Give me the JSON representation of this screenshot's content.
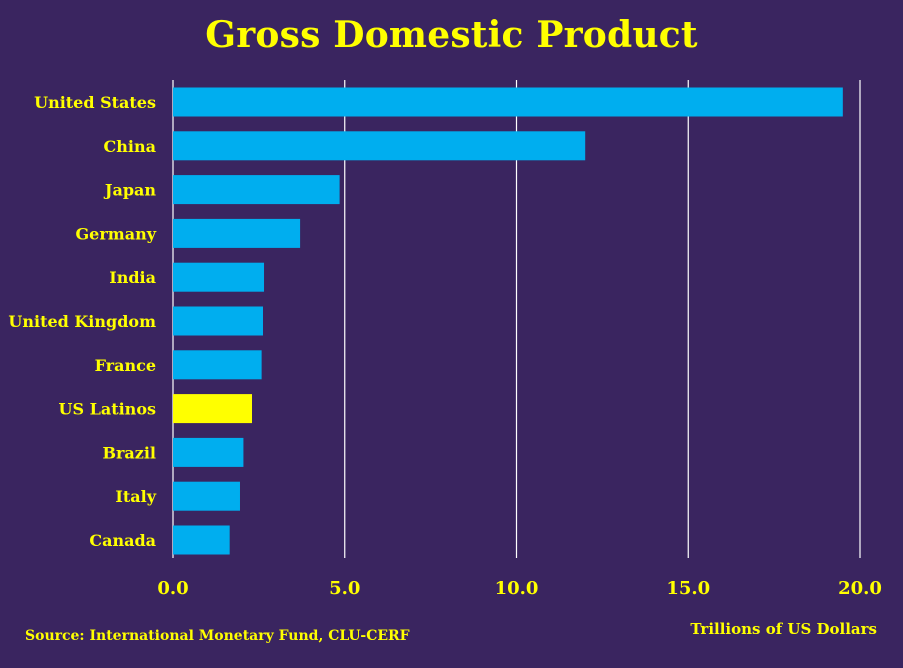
{
  "colors": {
    "background": "#3a2560",
    "text": "#ffff00",
    "bar": "#00aeef",
    "highlight_bar": "#ffff00",
    "gridline": "#ffffff"
  },
  "footer": {
    "source": "Source: International Monetary Fund, CLU-CERF"
  },
  "chart_data": {
    "type": "bar",
    "orientation": "horizontal",
    "title": "Gross Domestic Product",
    "xlabel": "Trillions of US Dollars",
    "ylabel": "",
    "xlim": [
      0,
      20
    ],
    "xticks": [
      "0.0",
      "5.0",
      "10.0",
      "15.0",
      "20.0"
    ],
    "xtick_values": [
      0,
      5,
      10,
      15,
      20
    ],
    "grid": true,
    "legend": "none",
    "categories": [
      "United States",
      "China",
      "Japan",
      "Germany",
      "India",
      "United Kingdom",
      "France",
      "US Latinos",
      "Brazil",
      "Italy",
      "Canada"
    ],
    "values": [
      19.5,
      12.0,
      4.85,
      3.7,
      2.65,
      2.62,
      2.58,
      2.3,
      2.05,
      1.95,
      1.65
    ],
    "highlight": [
      "US Latinos"
    ]
  }
}
